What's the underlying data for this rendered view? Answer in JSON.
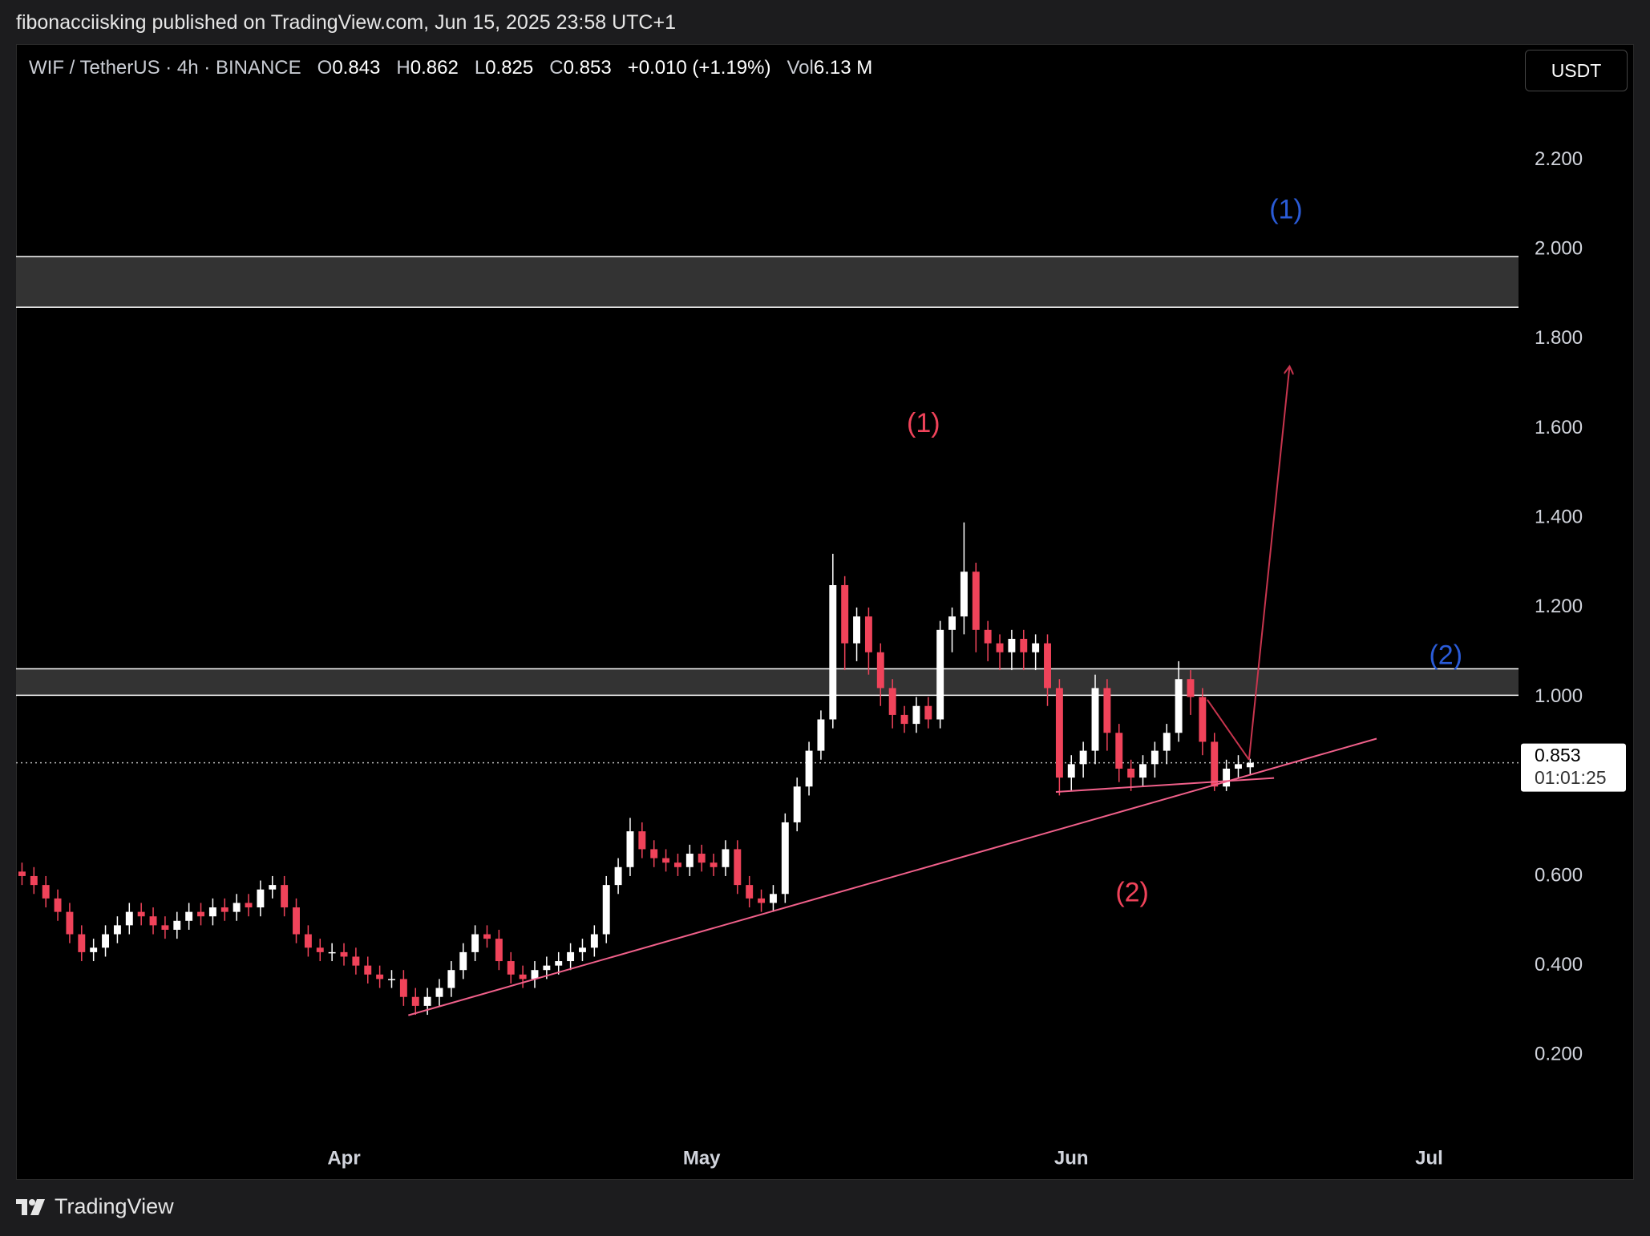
{
  "header": {
    "publisher": "fibonacciisking published on TradingView.com, Jun 15, 2025 23:58 UTC+1",
    "symbol": "WIF / TetherUS · 4h · BINANCE",
    "ohlc": [
      [
        "O",
        "0.843"
      ],
      [
        "H",
        "0.862"
      ],
      [
        "L",
        "0.825"
      ],
      [
        "C",
        "0.853"
      ]
    ],
    "change": "+0.010 (+1.19%)",
    "volume": [
      "Vol",
      "6.13 M"
    ],
    "currency": "USDT"
  },
  "footer": {
    "brand": "TradingView"
  },
  "chart_data": {
    "type": "candlestick",
    "up_color": "#ffffff",
    "down_color": "#f0435a",
    "xlim": [
      -0.5,
      125.5
    ],
    "xticks": [
      {
        "value": 27,
        "label": "Apr"
      },
      {
        "value": 57,
        "label": "May"
      },
      {
        "value": 88,
        "label": "Jun"
      },
      {
        "value": 118,
        "label": "Jul"
      }
    ],
    "ylim": [
      0,
      2.46
    ],
    "yticks": [
      {
        "value": 0.2,
        "label": "0.200"
      },
      {
        "value": 0.4,
        "label": "0.400"
      },
      {
        "value": 0.6,
        "label": "0.600"
      },
      {
        "value": 1.0,
        "label": "1.000"
      },
      {
        "value": 1.2,
        "label": "1.200"
      },
      {
        "value": 1.4,
        "label": "1.400"
      },
      {
        "value": 1.6,
        "label": "1.600"
      },
      {
        "value": 1.8,
        "label": "1.800"
      },
      {
        "value": 2.0,
        "label": "2.000"
      },
      {
        "value": 2.2,
        "label": "2.200"
      }
    ],
    "grid": false,
    "open": [
      0.61,
      0.6,
      0.58,
      0.55,
      0.52,
      0.47,
      0.43,
      0.44,
      0.47,
      0.49,
      0.52,
      0.51,
      0.49,
      0.48,
      0.5,
      0.52,
      0.51,
      0.53,
      0.52,
      0.54,
      0.53,
      0.57,
      0.58,
      0.53,
      0.47,
      0.44,
      0.43,
      0.43,
      0.42,
      0.4,
      0.38,
      0.37,
      0.37,
      0.33,
      0.31,
      0.33,
      0.35,
      0.39,
      0.43,
      0.47,
      0.46,
      0.41,
      0.38,
      0.37,
      0.39,
      0.4,
      0.41,
      0.43,
      0.44,
      0.47,
      0.58,
      0.62,
      0.7,
      0.66,
      0.64,
      0.63,
      0.62,
      0.65,
      0.63,
      0.62,
      0.66,
      0.58,
      0.55,
      0.54,
      0.56,
      0.72,
      0.8,
      0.88,
      0.95,
      1.25,
      1.12,
      1.18,
      1.1,
      1.02,
      0.96,
      0.94,
      0.98,
      0.95,
      1.15,
      1.18,
      1.28,
      1.15,
      1.12,
      1.1,
      1.13,
      1.1,
      1.12,
      1.02,
      0.82,
      0.85,
      0.88,
      1.02,
      0.92,
      0.84,
      0.82,
      0.85,
      0.88,
      0.92,
      1.04,
      1.0,
      0.9,
      0.8,
      0.84,
      0.843
    ],
    "high": [
      0.63,
      0.62,
      0.6,
      0.57,
      0.54,
      0.49,
      0.46,
      0.49,
      0.51,
      0.54,
      0.54,
      0.53,
      0.51,
      0.52,
      0.54,
      0.54,
      0.55,
      0.55,
      0.56,
      0.56,
      0.59,
      0.6,
      0.6,
      0.55,
      0.49,
      0.46,
      0.45,
      0.45,
      0.44,
      0.42,
      0.4,
      0.39,
      0.39,
      0.35,
      0.35,
      0.37,
      0.41,
      0.45,
      0.49,
      0.49,
      0.48,
      0.43,
      0.4,
      0.41,
      0.42,
      0.43,
      0.45,
      0.46,
      0.49,
      0.6,
      0.64,
      0.73,
      0.72,
      0.68,
      0.66,
      0.65,
      0.67,
      0.67,
      0.65,
      0.68,
      0.68,
      0.6,
      0.57,
      0.58,
      0.74,
      0.82,
      0.9,
      0.97,
      1.32,
      1.27,
      1.2,
      1.2,
      1.12,
      1.04,
      0.98,
      1.0,
      1.0,
      1.17,
      1.2,
      1.39,
      1.3,
      1.17,
      1.14,
      1.15,
      1.15,
      1.14,
      1.14,
      1.04,
      0.87,
      0.9,
      1.05,
      1.04,
      0.94,
      0.86,
      0.87,
      0.9,
      0.94,
      1.08,
      1.06,
      1.02,
      0.92,
      0.86,
      0.87,
      0.862
    ],
    "low": [
      0.58,
      0.56,
      0.53,
      0.5,
      0.45,
      0.41,
      0.41,
      0.42,
      0.45,
      0.47,
      0.49,
      0.47,
      0.46,
      0.46,
      0.48,
      0.49,
      0.49,
      0.5,
      0.5,
      0.51,
      0.51,
      0.55,
      0.51,
      0.45,
      0.42,
      0.41,
      0.41,
      0.4,
      0.38,
      0.36,
      0.35,
      0.35,
      0.31,
      0.29,
      0.29,
      0.31,
      0.33,
      0.37,
      0.41,
      0.44,
      0.39,
      0.36,
      0.35,
      0.35,
      0.37,
      0.38,
      0.39,
      0.41,
      0.42,
      0.45,
      0.56,
      0.6,
      0.64,
      0.62,
      0.61,
      0.6,
      0.6,
      0.61,
      0.6,
      0.6,
      0.56,
      0.53,
      0.52,
      0.52,
      0.54,
      0.7,
      0.78,
      0.86,
      0.93,
      1.06,
      1.08,
      1.05,
      0.98,
      0.93,
      0.92,
      0.92,
      0.93,
      0.93,
      1.1,
      1.14,
      1.1,
      1.08,
      1.06,
      1.06,
      1.06,
      1.06,
      0.98,
      0.78,
      0.79,
      0.82,
      0.85,
      0.88,
      0.81,
      0.79,
      0.8,
      0.82,
      0.85,
      0.9,
      0.96,
      0.87,
      0.79,
      0.79,
      0.82,
      0.825
    ],
    "close": [
      0.6,
      0.58,
      0.55,
      0.52,
      0.47,
      0.43,
      0.44,
      0.47,
      0.49,
      0.52,
      0.51,
      0.49,
      0.48,
      0.5,
      0.52,
      0.51,
      0.53,
      0.52,
      0.54,
      0.53,
      0.57,
      0.58,
      0.53,
      0.47,
      0.44,
      0.43,
      0.43,
      0.42,
      0.4,
      0.38,
      0.37,
      0.37,
      0.33,
      0.31,
      0.33,
      0.35,
      0.39,
      0.43,
      0.47,
      0.46,
      0.41,
      0.38,
      0.37,
      0.39,
      0.4,
      0.41,
      0.43,
      0.44,
      0.47,
      0.58,
      0.62,
      0.7,
      0.66,
      0.64,
      0.63,
      0.62,
      0.65,
      0.63,
      0.62,
      0.66,
      0.58,
      0.55,
      0.54,
      0.56,
      0.72,
      0.8,
      0.88,
      0.95,
      1.25,
      1.12,
      1.18,
      1.1,
      1.02,
      0.96,
      0.94,
      0.98,
      0.95,
      1.15,
      1.18,
      1.28,
      1.15,
      1.12,
      1.1,
      1.13,
      1.1,
      1.12,
      1.02,
      0.82,
      0.85,
      0.88,
      1.02,
      0.92,
      0.84,
      0.82,
      0.85,
      0.88,
      0.92,
      1.04,
      1.0,
      0.9,
      0.8,
      0.84,
      0.85,
      0.853
    ],
    "zones": [
      {
        "from": 1.871,
        "to": 1.984
      },
      {
        "from": 1.004,
        "to": 1.063
      }
    ],
    "lines": [
      {
        "color": "#f0608a",
        "points": [
          [
            32.4,
            0.289
          ],
          [
            113.6,
            0.907
          ]
        ]
      },
      {
        "color": "#f0608a",
        "points": [
          [
            86.7,
            0.788
          ],
          [
            105,
            0.819
          ]
        ]
      },
      {
        "color": "#c8354e",
        "points": [
          [
            99.4,
            0.994
          ],
          [
            102.9,
            0.86
          ]
        ]
      },
      {
        "color": "#c8354e",
        "arrow": true,
        "points": [
          [
            102.9,
            0.86
          ],
          [
            106.3,
            1.739
          ]
        ]
      }
    ],
    "annotations": [
      {
        "text": "(1)",
        "color": "#f0435a",
        "x": 75.6,
        "y": 1.608
      },
      {
        "text": "(2)",
        "color": "#f0435a",
        "x": 93.1,
        "y": 0.56
      },
      {
        "text": "(1)",
        "color": "#2a5bd7",
        "x": 106,
        "y": 2.085
      },
      {
        "text": "(2)",
        "color": "#2a5bd7",
        "x": 119.4,
        "y": 1.09
      }
    ],
    "last_price": {
      "value": 0.853,
      "label": "0.853"
    },
    "countdown": "01:01:25"
  }
}
